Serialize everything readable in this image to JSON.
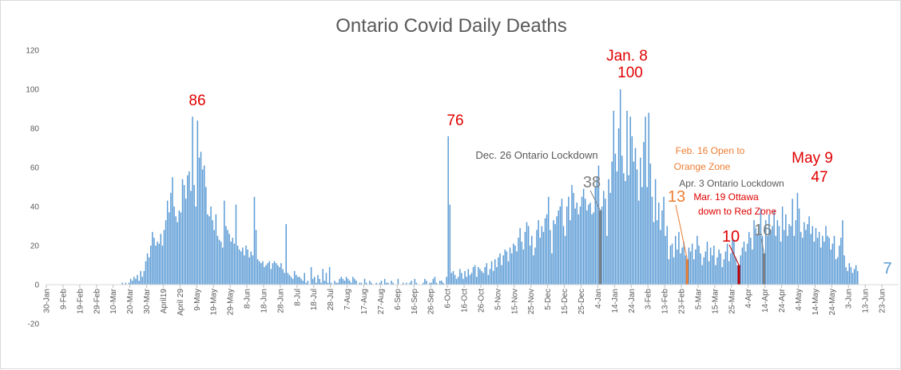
{
  "chart_data": {
    "type": "bar",
    "title": "Ontario Covid Daily Deaths",
    "xlabel": "",
    "ylabel": "",
    "ylim": [
      -20,
      120
    ],
    "yticks": [
      -20,
      0,
      20,
      40,
      60,
      80,
      100,
      120
    ],
    "grid": false,
    "legend": "none",
    "bar_color": "#5b9bd5",
    "x_start_date": "2020-01-30",
    "x_end_date": "2021-06-23",
    "xtick_labels": [
      "30-Jan",
      "9-Feb",
      "19-Feb",
      "29-Feb",
      "10-Mar",
      "20-Mar",
      "30-Mar",
      "April19",
      "April 29",
      "9-May",
      "19-May",
      "29-May",
      "8-Jun",
      "18-Jun",
      "28-Jun",
      "8-Jul",
      "18-Jul",
      "28-Jul",
      "7-Aug",
      "17-Aug",
      "27-Aug",
      "6-Sep",
      "16-Sep",
      "26-Sep",
      "6-Oct",
      "16-Oct",
      "26-Oct",
      "5-Nov",
      "15-Nov",
      "25-Nov",
      "5-Dec",
      "15-Dec",
      "25-Dec",
      "4-Jan",
      "14-Jan",
      "24-Jan",
      "3-Feb",
      "13-Feb",
      "23-Feb",
      "5-Mar",
      "15-Mar",
      "25-Mar",
      "4-Apr",
      "14-Apr",
      "24-Apr",
      "4-May",
      "14-May",
      "24-May",
      "3-Jun",
      "13-Jun",
      "23-Jun"
    ],
    "daily_values": [
      0,
      0,
      0,
      0,
      0,
      0,
      0,
      0,
      0,
      0,
      0,
      0,
      0,
      0,
      0,
      0,
      0,
      0,
      0,
      0,
      0,
      0,
      0,
      0,
      0,
      0,
      0,
      0,
      0,
      0,
      0,
      0,
      0,
      0,
      0,
      0,
      0,
      0,
      0,
      0,
      0,
      0,
      0,
      0,
      0,
      1,
      0,
      1,
      0,
      1,
      3,
      2,
      4,
      3,
      5,
      2,
      7,
      4,
      7,
      12,
      16,
      14,
      20,
      27,
      24,
      20,
      22,
      21,
      26,
      20,
      28,
      33,
      43,
      37,
      47,
      55,
      40,
      35,
      32,
      38,
      37,
      54,
      51,
      44,
      56,
      58,
      48,
      86,
      51,
      40,
      84,
      65,
      68,
      59,
      61,
      50,
      36,
      35,
      40,
      33,
      28,
      36,
      25,
      23,
      22,
      19,
      43,
      30,
      28,
      26,
      22,
      24,
      21,
      41,
      20,
      18,
      17,
      19,
      15,
      20,
      18,
      14,
      17,
      15,
      45,
      28,
      13,
      12,
      11,
      12,
      9,
      10,
      11,
      12,
      8,
      11,
      12,
      11,
      10,
      9,
      11,
      8,
      6,
      31,
      6,
      5,
      4,
      3,
      7,
      5,
      4,
      4,
      3,
      2,
      6,
      1,
      2,
      0,
      9,
      3,
      4,
      1,
      5,
      3,
      1,
      8,
      2,
      6,
      1,
      9,
      1,
      0,
      2,
      1,
      1,
      3,
      4,
      3,
      2,
      4,
      3,
      2,
      1,
      4,
      3,
      2,
      0,
      1,
      1,
      0,
      3,
      1,
      0,
      2,
      1,
      0,
      0,
      1,
      0,
      1,
      2,
      0,
      3,
      1,
      1,
      0,
      2,
      1,
      0,
      0,
      3,
      0,
      0,
      1,
      0,
      1,
      0,
      1,
      2,
      0,
      3,
      1,
      0,
      0,
      0,
      1,
      3,
      2,
      0,
      1,
      1,
      3,
      4,
      1,
      0,
      2,
      2,
      1,
      0,
      4,
      76,
      41,
      6,
      7,
      5,
      3,
      4,
      8,
      6,
      3,
      7,
      4,
      8,
      5,
      6,
      9,
      10,
      4,
      9,
      8,
      7,
      6,
      9,
      11,
      5,
      8,
      12,
      7,
      13,
      9,
      14,
      16,
      10,
      15,
      18,
      17,
      12,
      19,
      16,
      21,
      20,
      17,
      24,
      29,
      22,
      18,
      27,
      32,
      30,
      20,
      25,
      15,
      19,
      28,
      33,
      24,
      30,
      27,
      34,
      36,
      45,
      28,
      16,
      33,
      31,
      35,
      38,
      40,
      44,
      30,
      25,
      40,
      45,
      33,
      51,
      47,
      39,
      42,
      36,
      40,
      45,
      49,
      44,
      38,
      41,
      42,
      36,
      37,
      50,
      55,
      61,
      65,
      40,
      48,
      44,
      25,
      54,
      47,
      63,
      89,
      67,
      58,
      80,
      100,
      66,
      57,
      53,
      89,
      56,
      86,
      76,
      63,
      70,
      59,
      43,
      65,
      50,
      73,
      86,
      50,
      88,
      62,
      45,
      32,
      54,
      33,
      42,
      28,
      38,
      45,
      25,
      30,
      13,
      20,
      21,
      14,
      25,
      18,
      27,
      16,
      19,
      22,
      15,
      24,
      19,
      17,
      21,
      13,
      18,
      25,
      20,
      16,
      10,
      14,
      17,
      22,
      12,
      19,
      15,
      20,
      10,
      14,
      18,
      16,
      9,
      13,
      17,
      21,
      12,
      16,
      23,
      23,
      14,
      10,
      18,
      15,
      19,
      22,
      17,
      21,
      27,
      24,
      18,
      33,
      29,
      26,
      31,
      39,
      25,
      29,
      33,
      25,
      36,
      28,
      30,
      38,
      25,
      33,
      30,
      22,
      40,
      28,
      36,
      25,
      31,
      30,
      44,
      25,
      33,
      47,
      39,
      27,
      24,
      32,
      28,
      31,
      35,
      26,
      30,
      22,
      29,
      24,
      27,
      19,
      25,
      22,
      30,
      25,
      24,
      18,
      21,
      25,
      13,
      14,
      20,
      24,
      33,
      15,
      9,
      7,
      11,
      9,
      6,
      8,
      10,
      7
    ]
  },
  "annotations": [
    {
      "key": "peak-apr",
      "text": "86",
      "color": "#e00000"
    },
    {
      "key": "peak-oct",
      "text": "76",
      "color": "#e00000"
    },
    {
      "key": "jan8-date",
      "text": "Jan. 8",
      "color": "#e00000"
    },
    {
      "key": "jan8-value",
      "text": "100",
      "color": "#e00000"
    },
    {
      "key": "dec26-label",
      "text": "Dec. 26 Ontario Lockdown",
      "color": "#595959"
    },
    {
      "key": "dec26-value",
      "text": "38",
      "color": "#7f7f7f"
    },
    {
      "key": "feb16-label-1",
      "text": "Feb. 16 Open to",
      "color": "#ed7d31"
    },
    {
      "key": "feb16-label-2",
      "text": "Orange Zone",
      "color": "#ed7d31"
    },
    {
      "key": "feb16-value",
      "text": "13",
      "color": "#ed7d31"
    },
    {
      "key": "apr3-label",
      "text": "Apr. 3 Ontario Lockdown",
      "color": "#595959"
    },
    {
      "key": "mar19-label-1",
      "text": "Mar. 19 Ottawa",
      "color": "#e00000"
    },
    {
      "key": "mar19-label-2",
      "text": "down to Red Zone",
      "color": "#e00000"
    },
    {
      "key": "mar19-value",
      "text": "10",
      "color": "#e00000"
    },
    {
      "key": "apr3-value",
      "text": "16",
      "color": "#7f7f7f"
    },
    {
      "key": "may9-date",
      "text": "May 9",
      "color": "#e00000"
    },
    {
      "key": "may9-value",
      "text": "47",
      "color": "#e00000"
    },
    {
      "key": "last-value",
      "text": "7",
      "color": "#5b9bd5"
    }
  ],
  "highlights": [
    {
      "date": "2020-12-26",
      "value": 38,
      "color": "#7f7f7f"
    },
    {
      "date": "2021-02-16",
      "value": 13,
      "color": "#ed7d31"
    },
    {
      "date": "2021-03-19",
      "value": 10,
      "color": "#c00000"
    },
    {
      "date": "2021-04-03",
      "value": 16,
      "color": "#7f7f7f"
    }
  ]
}
